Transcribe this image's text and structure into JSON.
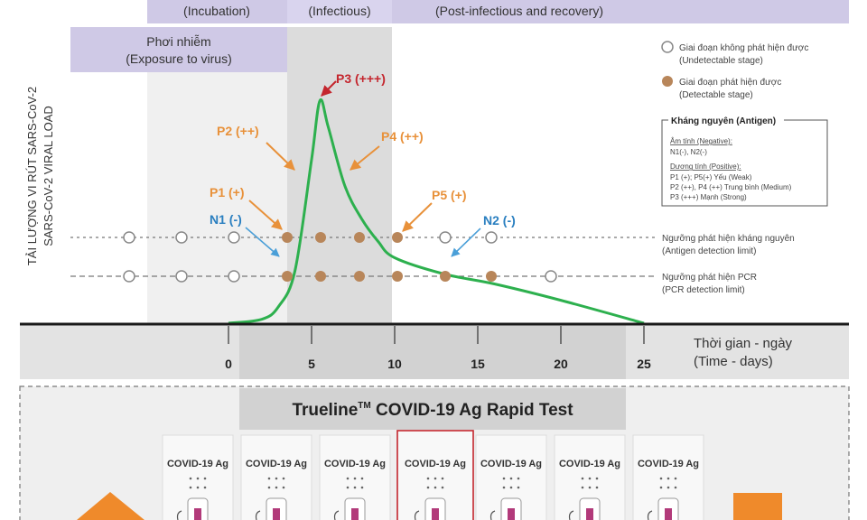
{
  "phases": {
    "incubation": "(Incubation)",
    "infectious": "(Infectious)",
    "post": "(Post-infectious and recovery)",
    "exposure_vi": "Phơi nhiễm",
    "exposure_en": "(Exposure to virus)"
  },
  "y_axis": {
    "label_vi": "TẢI LƯỢNG VI RÚT SARS-CoV-2",
    "label_en": "SARS-CoV-2 VIRAL LOAD"
  },
  "x_axis": {
    "label_vi": "Thời gian - ngày",
    "label_en": "(Time - days)",
    "ticks": [
      "0",
      "5",
      "10",
      "15",
      "20",
      "25"
    ]
  },
  "points": {
    "p1": "P1 (+)",
    "p2": "P2 (++)",
    "p3": "P3 (+++)",
    "p4": "P4 (++)",
    "p5": "P5 (+)",
    "n1": "N1 (-)",
    "n2": "N2 (-)"
  },
  "legend": {
    "undetectable_vi": "Giai đoạn không phát hiện được",
    "undetectable_en": "(Undetectable stage)",
    "detectable_vi": "Giai đoạn phát hiện được",
    "detectable_en": "(Detectable stage)",
    "antigen_title": "Kháng nguyên (Antigen)",
    "negative_head": "Âm tính (Negative):",
    "negative_items": "N1(-), N2(-)",
    "positive_head": "Dương tính (Positive):",
    "positive_line1": "P1 (+); P5(+) Yếu (Weak)",
    "positive_line2": "P2 (++), P4 (++) Trung bình (Medium)",
    "positive_line3": "P3 (+++) Mạnh (Strong)"
  },
  "thresholds": {
    "antigen_vi": "Ngưỡng phát hiện kháng nguyên",
    "antigen_en": "(Antigen detection limit)",
    "pcr_vi": "Ngưỡng phát hiện PCR",
    "pcr_en": "(PCR detection limit)"
  },
  "test": {
    "title_prefix": "Trueline",
    "title_tm": "TM",
    "title_rest": " COVID-19 Ag Rapid Test",
    "cards": [
      "COVID-19 Ag",
      "COVID-19 Ag",
      "COVID-19 Ag",
      "COVID-19 Ag",
      "COVID-19 Ag",
      "COVID-19 Ag",
      "COVID-19 Ag"
    ],
    "highlighted_index": 3
  },
  "colors": {
    "curve": "#2db04e",
    "positive_label": "#e8913a",
    "negative_label": "#2a7fc0",
    "dot_detectable": "#b8865a",
    "arrow_red": "#c4262e",
    "arrow_orange": "#e8913a",
    "arrow_blue": "#4a9fd8",
    "phase_bar": "#cfc9e6",
    "orange_shape": "#ef8a2b"
  },
  "chart_data": {
    "type": "line",
    "xlabel": "Thời gian - ngày (Time - days)",
    "ylabel": "TẢI LƯỢNG VI RÚT SARS-CoV-2 / SARS-CoV-2 VIRAL LOAD",
    "xlim": [
      0,
      25
    ],
    "series": [
      {
        "x": [
          0,
          2,
          3,
          4,
          5,
          5.5,
          6,
          7,
          8,
          9,
          10,
          13,
          16,
          20,
          25
        ],
        "values": [
          0,
          0.06,
          0.25,
          0.8,
          2.5,
          3.4,
          3.0,
          2.1,
          1.6,
          1.25,
          1.0,
          0.75,
          0.6,
          0.35,
          0
        ]
      }
    ]
  }
}
